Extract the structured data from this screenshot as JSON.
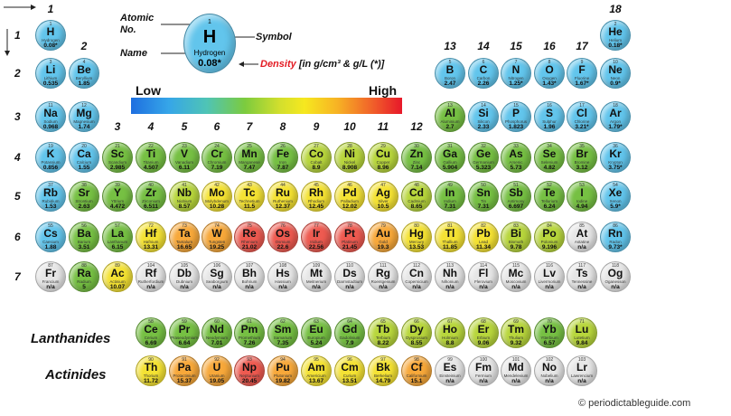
{
  "legend": {
    "atomic_label": "Atomic No.",
    "name_label": "Name",
    "symbol_label": "Symbol",
    "density_word": "Density",
    "density_unit": "[in g/cm³ & g/L (*)]",
    "example": {
      "number": "1",
      "symbol": "H",
      "name": "Hydrogen",
      "density": "0.08*"
    }
  },
  "scale": {
    "low": "Low",
    "high": "High"
  },
  "groups": [
    "1",
    "2",
    "3",
    "4",
    "5",
    "6",
    "7",
    "8",
    "9",
    "10",
    "11",
    "12",
    "13",
    "14",
    "15",
    "16",
    "17",
    "18"
  ],
  "periods": [
    "1",
    "2",
    "3",
    "4",
    "5",
    "6",
    "7"
  ],
  "row_labels": {
    "lanthanides": "Lanthanides",
    "actinides": "Actinides"
  },
  "copyright": "© periodictableguide.com",
  "colors": {
    "blue": "#62c5ec",
    "green": "#76c043",
    "lightgreen": "#b8d63c",
    "yellow": "#f4e233",
    "orange": "#f7a83a",
    "red": "#ee5a50",
    "grey": "#e6e6e6"
  },
  "elements": [
    {
      "n": "1",
      "s": "H",
      "nm": "Hydrogen",
      "d": "0.08*",
      "c": "blue",
      "col": 1,
      "row": 1
    },
    {
      "n": "2",
      "s": "He",
      "nm": "Helium",
      "d": "0.18*",
      "c": "blue",
      "col": 18,
      "row": 1
    },
    {
      "n": "3",
      "s": "Li",
      "nm": "Lithium",
      "d": "0.535",
      "c": "blue",
      "col": 1,
      "row": 2
    },
    {
      "n": "4",
      "s": "Be",
      "nm": "Beryllium",
      "d": "1.85",
      "c": "blue",
      "col": 2,
      "row": 2
    },
    {
      "n": "5",
      "s": "B",
      "nm": "Boron",
      "d": "2.47",
      "c": "blue",
      "col": 13,
      "row": 2
    },
    {
      "n": "6",
      "s": "C",
      "nm": "Carbon",
      "d": "2.26",
      "c": "blue",
      "col": 14,
      "row": 2
    },
    {
      "n": "7",
      "s": "N",
      "nm": "Nitrogen",
      "d": "1.25*",
      "c": "blue",
      "col": 15,
      "row": 2
    },
    {
      "n": "8",
      "s": "O",
      "nm": "Oxygen",
      "d": "1.43*",
      "c": "blue",
      "col": 16,
      "row": 2
    },
    {
      "n": "9",
      "s": "F",
      "nm": "Fluorine",
      "d": "1.67*",
      "c": "blue",
      "col": 17,
      "row": 2
    },
    {
      "n": "10",
      "s": "Ne",
      "nm": "Neon",
      "d": "0.9*",
      "c": "blue",
      "col": 18,
      "row": 2
    },
    {
      "n": "11",
      "s": "Na",
      "nm": "Sodium",
      "d": "0.968",
      "c": "blue",
      "col": 1,
      "row": 3
    },
    {
      "n": "12",
      "s": "Mg",
      "nm": "Magnesium",
      "d": "1.74",
      "c": "blue",
      "col": 2,
      "row": 3
    },
    {
      "n": "13",
      "s": "Al",
      "nm": "Aluminium",
      "d": "2.7",
      "c": "green",
      "col": 13,
      "row": 3
    },
    {
      "n": "14",
      "s": "Si",
      "nm": "Silicon",
      "d": "2.33",
      "c": "blue",
      "col": 14,
      "row": 3
    },
    {
      "n": "15",
      "s": "P",
      "nm": "Phosphorus",
      "d": "1.823",
      "c": "blue",
      "col": 15,
      "row": 3
    },
    {
      "n": "16",
      "s": "S",
      "nm": "Sulphur",
      "d": "1.96",
      "c": "blue",
      "col": 16,
      "row": 3
    },
    {
      "n": "17",
      "s": "Cl",
      "nm": "Chlorine",
      "d": "3.21*",
      "c": "blue",
      "col": 17,
      "row": 3
    },
    {
      "n": "18",
      "s": "Ar",
      "nm": "Argon",
      "d": "1.79*",
      "c": "blue",
      "col": 18,
      "row": 3
    },
    {
      "n": "19",
      "s": "K",
      "nm": "Potassium",
      "d": "0.856",
      "c": "blue",
      "col": 1,
      "row": 4
    },
    {
      "n": "20",
      "s": "Ca",
      "nm": "Calcium",
      "d": "1.55",
      "c": "blue",
      "col": 2,
      "row": 4
    },
    {
      "n": "21",
      "s": "Sc",
      "nm": "Scandium",
      "d": "2.985",
      "c": "green",
      "col": 3,
      "row": 4
    },
    {
      "n": "22",
      "s": "Ti",
      "nm": "Titanium",
      "d": "4.507",
      "c": "green",
      "col": 4,
      "row": 4
    },
    {
      "n": "23",
      "s": "V",
      "nm": "Vanadium",
      "d": "6.11",
      "c": "green",
      "col": 5,
      "row": 4
    },
    {
      "n": "24",
      "s": "Cr",
      "nm": "Chromium",
      "d": "7.19",
      "c": "green",
      "col": 6,
      "row": 4
    },
    {
      "n": "25",
      "s": "Mn",
      "nm": "Manganese",
      "d": "7.47",
      "c": "green",
      "col": 7,
      "row": 4
    },
    {
      "n": "26",
      "s": "Fe",
      "nm": "Iron",
      "d": "7.87",
      "c": "green",
      "col": 8,
      "row": 4
    },
    {
      "n": "27",
      "s": "Co",
      "nm": "Cobalt",
      "d": "8.9",
      "c": "lightgreen",
      "col": 9,
      "row": 4
    },
    {
      "n": "28",
      "s": "Ni",
      "nm": "Nickel",
      "d": "8.908",
      "c": "lightgreen",
      "col": 10,
      "row": 4
    },
    {
      "n": "29",
      "s": "Cu",
      "nm": "Copper",
      "d": "8.96",
      "c": "lightgreen",
      "col": 11,
      "row": 4
    },
    {
      "n": "30",
      "s": "Zn",
      "nm": "Zinc",
      "d": "7.14",
      "c": "green",
      "col": 12,
      "row": 4
    },
    {
      "n": "31",
      "s": "Ga",
      "nm": "Gallium",
      "d": "5.904",
      "c": "green",
      "col": 13,
      "row": 4
    },
    {
      "n": "32",
      "s": "Ge",
      "nm": "Germanium",
      "d": "5.323",
      "c": "green",
      "col": 14,
      "row": 4
    },
    {
      "n": "33",
      "s": "As",
      "nm": "Arsenic",
      "d": "5.73",
      "c": "green",
      "col": 15,
      "row": 4
    },
    {
      "n": "34",
      "s": "Se",
      "nm": "Selenium",
      "d": "4.82",
      "c": "green",
      "col": 16,
      "row": 4
    },
    {
      "n": "35",
      "s": "Br",
      "nm": "Bromine",
      "d": "3.12",
      "c": "green",
      "col": 17,
      "row": 4
    },
    {
      "n": "36",
      "s": "Kr",
      "nm": "Krypton",
      "d": "3.75*",
      "c": "blue",
      "col": 18,
      "row": 4
    },
    {
      "n": "37",
      "s": "Rb",
      "nm": "Rubidium",
      "d": "1.53",
      "c": "blue",
      "col": 1,
      "row": 5
    },
    {
      "n": "38",
      "s": "Sr",
      "nm": "Strontium",
      "d": "2.63",
      "c": "green",
      "col": 2,
      "row": 5
    },
    {
      "n": "39",
      "s": "Y",
      "nm": "Yttrium",
      "d": "4.472",
      "c": "green",
      "col": 3,
      "row": 5
    },
    {
      "n": "40",
      "s": "Zr",
      "nm": "Zirconium",
      "d": "6.511",
      "c": "green",
      "col": 4,
      "row": 5
    },
    {
      "n": "41",
      "s": "Nb",
      "nm": "Niobium",
      "d": "8.57",
      "c": "lightgreen",
      "col": 5,
      "row": 5
    },
    {
      "n": "42",
      "s": "Mo",
      "nm": "Molybdenum",
      "d": "10.28",
      "c": "yellow",
      "col": 6,
      "row": 5
    },
    {
      "n": "43",
      "s": "Tc",
      "nm": "Technetium",
      "d": "11.5",
      "c": "yellow",
      "col": 7,
      "row": 5
    },
    {
      "n": "44",
      "s": "Ru",
      "nm": "Ruthenium",
      "d": "12.37",
      "c": "yellow",
      "col": 8,
      "row": 5
    },
    {
      "n": "45",
      "s": "Rh",
      "nm": "Rhodium",
      "d": "12.45",
      "c": "yellow",
      "col": 9,
      "row": 5
    },
    {
      "n": "46",
      "s": "Pd",
      "nm": "Palladium",
      "d": "12.02",
      "c": "yellow",
      "col": 10,
      "row": 5
    },
    {
      "n": "47",
      "s": "Ag",
      "nm": "Silver",
      "d": "10.5",
      "c": "yellow",
      "col": 11,
      "row": 5
    },
    {
      "n": "48",
      "s": "Cd",
      "nm": "Cadmium",
      "d": "8.65",
      "c": "lightgreen",
      "col": 12,
      "row": 5
    },
    {
      "n": "49",
      "s": "In",
      "nm": "Indium",
      "d": "7.31",
      "c": "green",
      "col": 13,
      "row": 5
    },
    {
      "n": "50",
      "s": "Sn",
      "nm": "Tin",
      "d": "7.31",
      "c": "green",
      "col": 14,
      "row": 5
    },
    {
      "n": "51",
      "s": "Sb",
      "nm": "Antimony",
      "d": "6.697",
      "c": "green",
      "col": 15,
      "row": 5
    },
    {
      "n": "52",
      "s": "Te",
      "nm": "Tellurium",
      "d": "6.24",
      "c": "green",
      "col": 16,
      "row": 5
    },
    {
      "n": "53",
      "s": "I",
      "nm": "Iodine",
      "d": "4.94",
      "c": "green",
      "col": 17,
      "row": 5
    },
    {
      "n": "54",
      "s": "Xe",
      "nm": "Xenon",
      "d": "5.9*",
      "c": "blue",
      "col": 18,
      "row": 5
    },
    {
      "n": "55",
      "s": "Cs",
      "nm": "Caesium",
      "d": "1.88",
      "c": "blue",
      "col": 1,
      "row": 6
    },
    {
      "n": "56",
      "s": "Ba",
      "nm": "Barium",
      "d": "3.51",
      "c": "green",
      "col": 2,
      "row": 6
    },
    {
      "n": "57",
      "s": "La",
      "nm": "Lanthanum",
      "d": "6.15",
      "c": "green",
      "col": 3,
      "row": 6
    },
    {
      "n": "72",
      "s": "Hf",
      "nm": "Hafnium",
      "d": "13.31",
      "c": "yellow",
      "col": 4,
      "row": 6
    },
    {
      "n": "73",
      "s": "Ta",
      "nm": "Tantalum",
      "d": "16.65",
      "c": "orange",
      "col": 5,
      "row": 6
    },
    {
      "n": "74",
      "s": "W",
      "nm": "Tungsten",
      "d": "19.25",
      "c": "orange",
      "col": 6,
      "row": 6
    },
    {
      "n": "75",
      "s": "Re",
      "nm": "Rhenium",
      "d": "21.02",
      "c": "red",
      "col": 7,
      "row": 6
    },
    {
      "n": "76",
      "s": "Os",
      "nm": "Osmium",
      "d": "22.6",
      "c": "red",
      "col": 8,
      "row": 6
    },
    {
      "n": "77",
      "s": "Ir",
      "nm": "Iridium",
      "d": "22.56",
      "c": "red",
      "col": 9,
      "row": 6
    },
    {
      "n": "78",
      "s": "Pt",
      "nm": "Platinum",
      "d": "21.45",
      "c": "red",
      "col": 10,
      "row": 6
    },
    {
      "n": "79",
      "s": "Au",
      "nm": "Gold",
      "d": "19.3",
      "c": "orange",
      "col": 11,
      "row": 6
    },
    {
      "n": "80",
      "s": "Hg",
      "nm": "Mercury",
      "d": "13.53",
      "c": "yellow",
      "col": 12,
      "row": 6
    },
    {
      "n": "81",
      "s": "Tl",
      "nm": "Thallium",
      "d": "11.85",
      "c": "yellow",
      "col": 13,
      "row": 6
    },
    {
      "n": "82",
      "s": "Pb",
      "nm": "Lead",
      "d": "11.34",
      "c": "yellow",
      "col": 14,
      "row": 6
    },
    {
      "n": "83",
      "s": "Bi",
      "nm": "Bismuth",
      "d": "9.78",
      "c": "lightgreen",
      "col": 15,
      "row": 6
    },
    {
      "n": "84",
      "s": "Po",
      "nm": "Polonium",
      "d": "9.196",
      "c": "lightgreen",
      "col": 16,
      "row": 6
    },
    {
      "n": "85",
      "s": "At",
      "nm": "Astatine",
      "d": "n/a",
      "c": "grey",
      "col": 17,
      "row": 6
    },
    {
      "n": "86",
      "s": "Rn",
      "nm": "Radon",
      "d": "9.73*",
      "c": "blue",
      "col": 18,
      "row": 6
    },
    {
      "n": "87",
      "s": "Fr",
      "nm": "Francium",
      "d": "n/a",
      "c": "grey",
      "col": 1,
      "row": 7
    },
    {
      "n": "88",
      "s": "Ra",
      "nm": "Radium",
      "d": "5",
      "c": "green",
      "col": 2,
      "row": 7
    },
    {
      "n": "89",
      "s": "Ac",
      "nm": "Actinium",
      "d": "10.07",
      "c": "yellow",
      "col": 3,
      "row": 7
    },
    {
      "n": "104",
      "s": "Rf",
      "nm": "Rutherfordium",
      "d": "n/a",
      "c": "grey",
      "col": 4,
      "row": 7
    },
    {
      "n": "105",
      "s": "Db",
      "nm": "Dubnium",
      "d": "n/a",
      "c": "grey",
      "col": 5,
      "row": 7
    },
    {
      "n": "106",
      "s": "Sg",
      "nm": "Seaborgium",
      "d": "n/a",
      "c": "grey",
      "col": 6,
      "row": 7
    },
    {
      "n": "107",
      "s": "Bh",
      "nm": "Bohrium",
      "d": "n/a",
      "c": "grey",
      "col": 7,
      "row": 7
    },
    {
      "n": "108",
      "s": "Hs",
      "nm": "Hassium",
      "d": "n/a",
      "c": "grey",
      "col": 8,
      "row": 7
    },
    {
      "n": "109",
      "s": "Mt",
      "nm": "Meitnerium",
      "d": "n/a",
      "c": "grey",
      "col": 9,
      "row": 7
    },
    {
      "n": "110",
      "s": "Ds",
      "nm": "Darmstadtium",
      "d": "n/a",
      "c": "grey",
      "col": 10,
      "row": 7
    },
    {
      "n": "111",
      "s": "Rg",
      "nm": "Roentgenium",
      "d": "n/a",
      "c": "grey",
      "col": 11,
      "row": 7
    },
    {
      "n": "112",
      "s": "Cn",
      "nm": "Copernicium",
      "d": "n/a",
      "c": "grey",
      "col": 12,
      "row": 7
    },
    {
      "n": "113",
      "s": "Nh",
      "nm": "Nihonium",
      "d": "n/a",
      "c": "grey",
      "col": 13,
      "row": 7
    },
    {
      "n": "114",
      "s": "Fl",
      "nm": "Flerovium",
      "d": "n/a",
      "c": "grey",
      "col": 14,
      "row": 7
    },
    {
      "n": "115",
      "s": "Mc",
      "nm": "Moscovium",
      "d": "n/a",
      "c": "grey",
      "col": 15,
      "row": 7
    },
    {
      "n": "116",
      "s": "Lv",
      "nm": "Livermorium",
      "d": "n/a",
      "c": "grey",
      "col": 16,
      "row": 7
    },
    {
      "n": "117",
      "s": "Ts",
      "nm": "Tennessine",
      "d": "n/a",
      "c": "grey",
      "col": 17,
      "row": 7
    },
    {
      "n": "118",
      "s": "Og",
      "nm": "Oganesson",
      "d": "n/a",
      "c": "grey",
      "col": 18,
      "row": 7
    },
    {
      "n": "58",
      "s": "Ce",
      "nm": "Cerium",
      "d": "6.69",
      "c": "green",
      "col": 4,
      "row": 8
    },
    {
      "n": "59",
      "s": "Pr",
      "nm": "Praseodymium",
      "d": "6.64",
      "c": "green",
      "col": 5,
      "row": 8
    },
    {
      "n": "60",
      "s": "Nd",
      "nm": "Neodymium",
      "d": "7.01",
      "c": "green",
      "col": 6,
      "row": 8
    },
    {
      "n": "61",
      "s": "Pm",
      "nm": "Promethium",
      "d": "7.26",
      "c": "green",
      "col": 7,
      "row": 8
    },
    {
      "n": "62",
      "s": "Sm",
      "nm": "Samarium",
      "d": "7.35",
      "c": "green",
      "col": 8,
      "row": 8
    },
    {
      "n": "63",
      "s": "Eu",
      "nm": "Europium",
      "d": "5.24",
      "c": "green",
      "col": 9,
      "row": 8
    },
    {
      "n": "64",
      "s": "Gd",
      "nm": "Gadolinium",
      "d": "7.9",
      "c": "green",
      "col": 10,
      "row": 8
    },
    {
      "n": "65",
      "s": "Tb",
      "nm": "Terbium",
      "d": "8.22",
      "c": "lightgreen",
      "col": 11,
      "row": 8
    },
    {
      "n": "66",
      "s": "Dy",
      "nm": "Dysprosium",
      "d": "8.55",
      "c": "lightgreen",
      "col": 12,
      "row": 8
    },
    {
      "n": "67",
      "s": "Ho",
      "nm": "Holmium",
      "d": "8.8",
      "c": "lightgreen",
      "col": 13,
      "row": 8
    },
    {
      "n": "68",
      "s": "Er",
      "nm": "Erbium",
      "d": "9.06",
      "c": "lightgreen",
      "col": 14,
      "row": 8
    },
    {
      "n": "69",
      "s": "Tm",
      "nm": "Thulium",
      "d": "9.32",
      "c": "lightgreen",
      "col": 15,
      "row": 8
    },
    {
      "n": "70",
      "s": "Yb",
      "nm": "Ytterbium",
      "d": "6.57",
      "c": "green",
      "col": 16,
      "row": 8
    },
    {
      "n": "71",
      "s": "Lu",
      "nm": "Lutetium",
      "d": "9.84",
      "c": "lightgreen",
      "col": 17,
      "row": 8
    },
    {
      "n": "90",
      "s": "Th",
      "nm": "Thorium",
      "d": "11.72",
      "c": "yellow",
      "col": 4,
      "row": 9
    },
    {
      "n": "91",
      "s": "Pa",
      "nm": "Protactinium",
      "d": "15.37",
      "c": "orange",
      "col": 5,
      "row": 9
    },
    {
      "n": "92",
      "s": "U",
      "nm": "Uranium",
      "d": "19.05",
      "c": "orange",
      "col": 6,
      "row": 9
    },
    {
      "n": "93",
      "s": "Np",
      "nm": "Neptunium",
      "d": "20.45",
      "c": "red",
      "col": 7,
      "row": 9
    },
    {
      "n": "94",
      "s": "Pu",
      "nm": "Plutonium",
      "d": "19.82",
      "c": "orange",
      "col": 8,
      "row": 9
    },
    {
      "n": "95",
      "s": "Am",
      "nm": "Americium",
      "d": "13.67",
      "c": "yellow",
      "col": 9,
      "row": 9
    },
    {
      "n": "96",
      "s": "Cm",
      "nm": "Curium",
      "d": "13.51",
      "c": "yellow",
      "col": 10,
      "row": 9
    },
    {
      "n": "97",
      "s": "Bk",
      "nm": "Berkelium",
      "d": "14.79",
      "c": "yellow",
      "col": 11,
      "row": 9
    },
    {
      "n": "98",
      "s": "Cf",
      "nm": "Californium",
      "d": "15.1",
      "c": "orange",
      "col": 12,
      "row": 9
    },
    {
      "n": "99",
      "s": "Es",
      "nm": "Einsteinium",
      "d": "n/a",
      "c": "grey",
      "col": 13,
      "row": 9
    },
    {
      "n": "100",
      "s": "Fm",
      "nm": "Fermium",
      "d": "n/a",
      "c": "grey",
      "col": 14,
      "row": 9
    },
    {
      "n": "101",
      "s": "Md",
      "nm": "Mendelevium",
      "d": "n/a",
      "c": "grey",
      "col": 15,
      "row": 9
    },
    {
      "n": "102",
      "s": "No",
      "nm": "Nobelium",
      "d": "n/a",
      "c": "grey",
      "col": 16,
      "row": 9
    },
    {
      "n": "103",
      "s": "Lr",
      "nm": "Lawrencium",
      "d": "n/a",
      "c": "grey",
      "col": 17,
      "row": 9
    }
  ]
}
